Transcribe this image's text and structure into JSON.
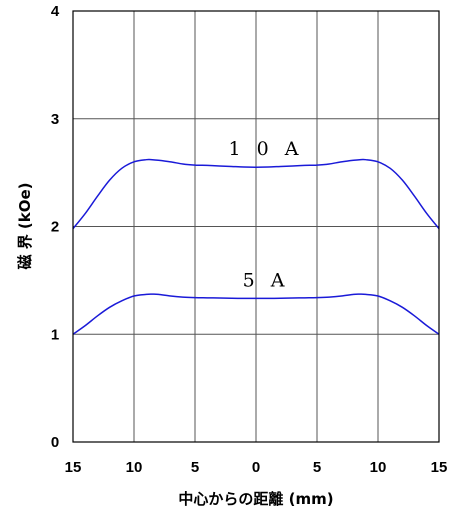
{
  "chart_data": {
    "type": "line",
    "xlabel": "中心からの距離 (mm)",
    "ylabel": "磁 界 (kOe)",
    "x_ticks": [
      -15,
      -10,
      -5,
      0,
      5,
      10,
      15
    ],
    "x_tick_labels": [
      "15",
      "10",
      "5",
      "0",
      "5",
      "10",
      "15"
    ],
    "y_ticks": [
      0,
      1,
      2,
      3,
      4
    ],
    "y_tick_labels": [
      "0",
      "1",
      "2",
      "3",
      "4"
    ],
    "xlim": [
      -15,
      15
    ],
    "ylim": [
      0,
      4
    ],
    "grid": true,
    "series": [
      {
        "name": "10A",
        "label": "1 0 A",
        "color": "#1a1ad8",
        "x": [
          -15,
          -14,
          -13,
          -12,
          -11,
          -10,
          -9,
          -8.5,
          -8,
          -7,
          -6,
          -5,
          -4,
          -3,
          -2,
          -1,
          0,
          1,
          2,
          3,
          4,
          5,
          6,
          7,
          8,
          8.5,
          9,
          10,
          11,
          12,
          13,
          14,
          15
        ],
        "y": [
          1.98,
          2.12,
          2.28,
          2.43,
          2.54,
          2.6,
          2.62,
          2.62,
          2.615,
          2.6,
          2.58,
          2.57,
          2.567,
          2.562,
          2.557,
          2.552,
          2.55,
          2.552,
          2.557,
          2.562,
          2.567,
          2.57,
          2.58,
          2.6,
          2.615,
          2.62,
          2.62,
          2.6,
          2.54,
          2.43,
          2.28,
          2.12,
          1.98
        ]
      },
      {
        "name": "5A",
        "label": "5 A",
        "color": "#1a1ad8",
        "x": [
          -15,
          -14,
          -13,
          -12,
          -11,
          -10,
          -9,
          -8.5,
          -8,
          -7,
          -6,
          -5,
          -4,
          -3,
          -2,
          -1,
          0,
          1,
          2,
          3,
          4,
          5,
          6,
          7,
          8,
          8.5,
          9,
          10,
          11,
          12,
          13,
          14,
          15
        ],
        "y": [
          1.0,
          1.08,
          1.17,
          1.25,
          1.31,
          1.355,
          1.37,
          1.372,
          1.37,
          1.355,
          1.345,
          1.34,
          1.338,
          1.336,
          1.334,
          1.333,
          1.333,
          1.333,
          1.334,
          1.336,
          1.338,
          1.34,
          1.345,
          1.355,
          1.37,
          1.372,
          1.37,
          1.355,
          1.31,
          1.25,
          1.17,
          1.08,
          1.0
        ]
      }
    ]
  }
}
